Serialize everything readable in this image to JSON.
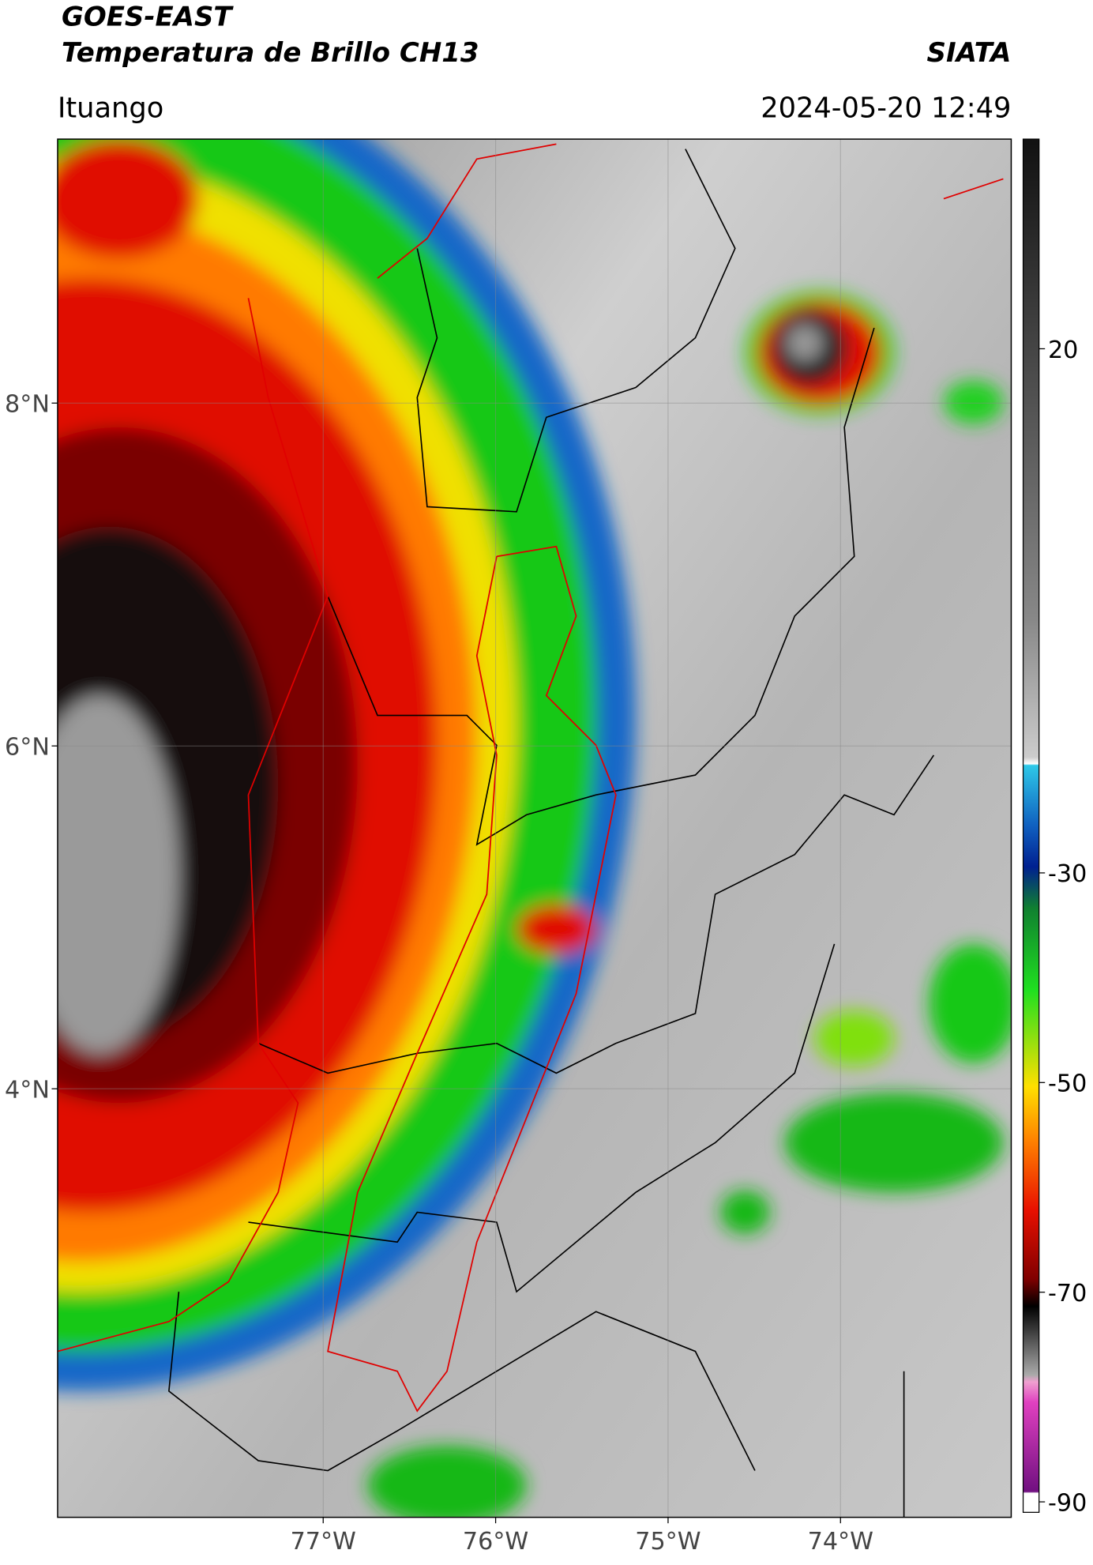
{
  "header": {
    "title": "GOES-EAST",
    "subtitle": "Temperatura de Brillo CH13",
    "org": "SIATA",
    "location": "Ituango",
    "timestamp": "2024-05-20 12:49"
  },
  "map": {
    "xlim": [
      -78.54,
      -73.01
    ],
    "ylim": [
      1.5,
      9.54
    ],
    "xticks": [
      {
        "value": -77,
        "label": "77°W"
      },
      {
        "value": -76,
        "label": "76°W"
      },
      {
        "value": -75,
        "label": "75°W"
      },
      {
        "value": -74,
        "label": "74°W"
      }
    ],
    "yticks": [
      {
        "value": 8,
        "label": "8°N"
      },
      {
        "value": 6,
        "label": "6°N"
      },
      {
        "value": 4,
        "label": "4°N"
      }
    ]
  },
  "colorbar": {
    "lim": [
      -91,
      40
    ],
    "ticks": [
      20,
      -30,
      -50,
      -70,
      -90
    ]
  }
}
